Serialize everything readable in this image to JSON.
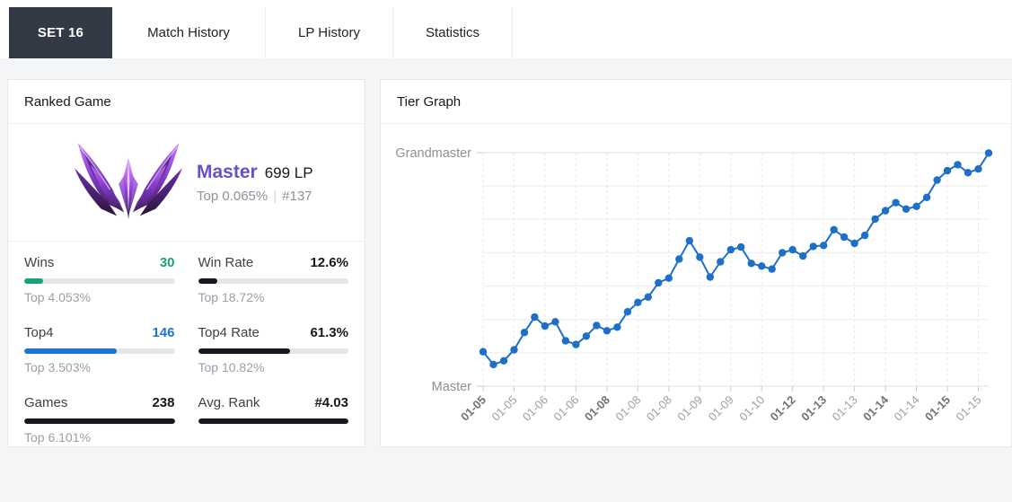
{
  "tabs": [
    {
      "label": "SET 16",
      "active": true
    },
    {
      "label": "Match History",
      "active": false
    },
    {
      "label": "LP History",
      "active": false
    },
    {
      "label": "Statistics",
      "active": false
    }
  ],
  "ranked_panel": {
    "title": "Ranked Game",
    "tier": {
      "emblem_icon": "master-tier-emblem",
      "name": "Master",
      "name_color": "#6c4ec9",
      "lp_text": "699 LP",
      "top_percent": "Top 0.065%",
      "separator": "|",
      "rank_number": "#137"
    },
    "stats": [
      {
        "label": "Wins",
        "value": "30",
        "value_color": "#16a37a",
        "bar_color": "#16a37a",
        "bar_pct": 12.6,
        "sub": "Top 4.053%"
      },
      {
        "label": "Win Rate",
        "value": "12.6%",
        "value_color": "#15181d",
        "bar_color": "#15181d",
        "bar_pct": 12.6,
        "sub": "Top 18.72%"
      },
      {
        "label": "Top4",
        "value": "146",
        "value_color": "#1b76d2",
        "bar_color": "#1b76d2",
        "bar_pct": 61.3,
        "sub": "Top 3.503%"
      },
      {
        "label": "Top4 Rate",
        "value": "61.3%",
        "value_color": "#15181d",
        "bar_color": "#15181d",
        "bar_pct": 61.3,
        "sub": "Top 10.82%"
      },
      {
        "label": "Games",
        "value": "238",
        "value_color": "#15181d",
        "bar_color": "#15181d",
        "bar_pct": 100,
        "sub": "Top 6.101%"
      },
      {
        "label": "Avg. Rank",
        "value": "#4.03",
        "value_color": "#15181d",
        "bar_color": "#15181d",
        "bar_pct": 100,
        "sub": ""
      }
    ]
  },
  "tier_graph_panel": {
    "title": "Tier Graph"
  },
  "chart_data": {
    "type": "line",
    "title": "Tier Graph",
    "legend": "none",
    "grid": "on",
    "line_color": "#1d6fc7",
    "point_color": "#1d6fc7",
    "y_axis": {
      "tick_labels": [
        "Master",
        "Grandmaster"
      ],
      "lp_range": [
        0,
        700
      ],
      "gridline_every_lp": 100,
      "note_master_lp": 0,
      "note_grandmaster_lp": 700
    },
    "x_tick_labels": [
      {
        "label": "01-05",
        "bold": true
      },
      {
        "label": "01-05",
        "bold": false
      },
      {
        "label": "01-06",
        "bold": false
      },
      {
        "label": "01-06",
        "bold": false
      },
      {
        "label": "01-08",
        "bold": true
      },
      {
        "label": "01-08",
        "bold": false
      },
      {
        "label": "01-08",
        "bold": false
      },
      {
        "label": "01-09",
        "bold": false
      },
      {
        "label": "01-09",
        "bold": false
      },
      {
        "label": "01-10",
        "bold": false
      },
      {
        "label": "01-12",
        "bold": true
      },
      {
        "label": "01-13",
        "bold": true
      },
      {
        "label": "01-13",
        "bold": false
      },
      {
        "label": "01-14",
        "bold": true
      },
      {
        "label": "01-14",
        "bold": false
      },
      {
        "label": "01-15",
        "bold": true
      },
      {
        "label": "01-15",
        "bold": false
      }
    ],
    "points_per_tick": 3,
    "values_lp": [
      103,
      65,
      76,
      109,
      161,
      207,
      180,
      193,
      136,
      125,
      150,
      182,
      166,
      177,
      223,
      251,
      267,
      310,
      324,
      381,
      436,
      387,
      327,
      373,
      409,
      417,
      368,
      360,
      351,
      400,
      409,
      390,
      419,
      422,
      469,
      447,
      428,
      452,
      501,
      526,
      550,
      531,
      539,
      566,
      618,
      646,
      664,
      640,
      651,
      699
    ]
  }
}
